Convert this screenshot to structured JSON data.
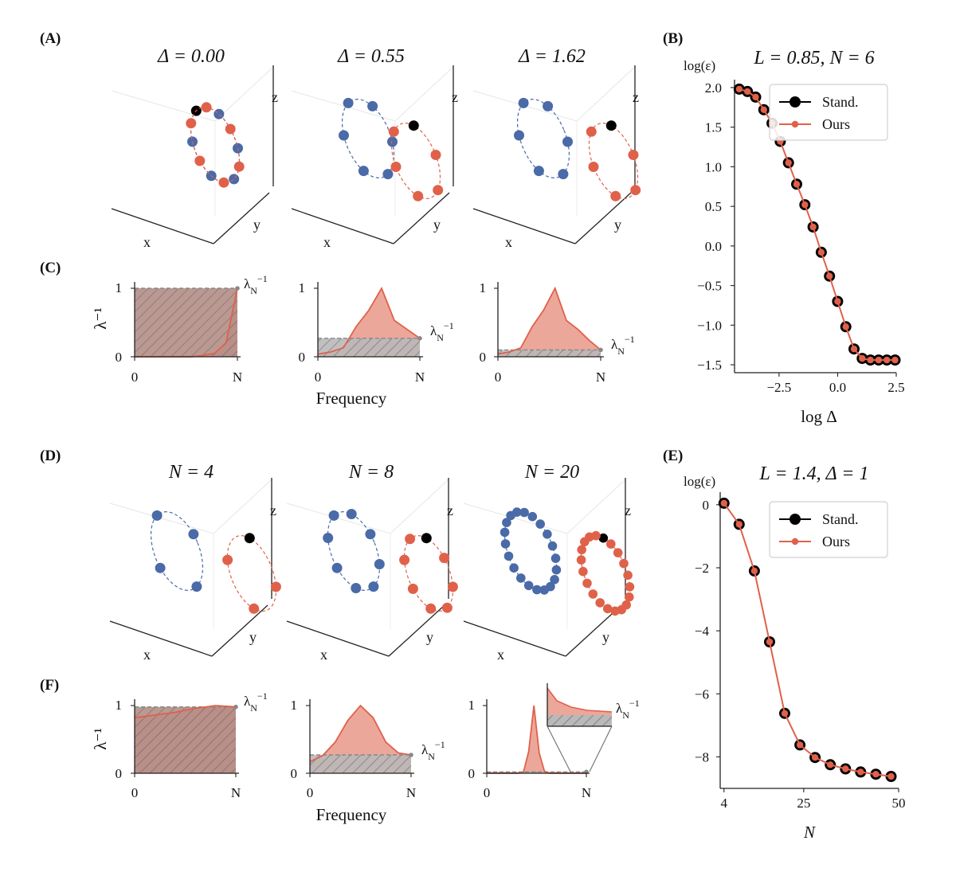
{
  "figure": {
    "panel_labels": [
      "(A)",
      "(B)",
      "(C)",
      "(D)",
      "(E)",
      "(F)"
    ],
    "colors": {
      "blue": "#4a6aa8",
      "red": "#e0614a",
      "red_fill": "#eba79a",
      "gray": "#b9b9b9",
      "black": "#000000"
    }
  },
  "chart_data": [
    {
      "id": "A",
      "type": "scatter3d",
      "axis_labels": [
        "x",
        "y",
        "z"
      ],
      "subplots": [
        {
          "title": "Δ = 0.00",
          "delta": 0.0,
          "n_blue": 6,
          "n_red": 6
        },
        {
          "title": "Δ = 0.55",
          "delta": 0.55,
          "n_blue": 6,
          "n_red": 6
        },
        {
          "title": "Δ = 1.62",
          "delta": 1.62,
          "n_blue": 6,
          "n_red": 6
        }
      ]
    },
    {
      "id": "B",
      "type": "line",
      "title": "L = 0.85, N = 6",
      "ylabel": "log(ε)",
      "xlabel": "log Δ",
      "xlim": [
        -4.4,
        2.5
      ],
      "ylim": [
        -1.6,
        2.1
      ],
      "xticks": [
        -2.5,
        0.0,
        2.5
      ],
      "xtick_labels": [
        "−2.5",
        "0.0",
        "2.5"
      ],
      "yticks": [
        2.0,
        1.5,
        1.0,
        0.5,
        0.0,
        -0.5,
        -1.0,
        -1.5
      ],
      "ytick_labels": [
        "2.0",
        "1.5",
        "1.0",
        "0.5",
        "0.0",
        "−0.5",
        "−1.0",
        "−1.5"
      ],
      "legend": [
        "Stand.",
        "Ours"
      ],
      "x": [
        -4.2,
        -3.85,
        -3.5,
        -3.15,
        -2.8,
        -2.45,
        -2.1,
        -1.75,
        -1.4,
        -1.05,
        -0.7,
        -0.35,
        0.0,
        0.35,
        0.7,
        1.05,
        1.4,
        1.75,
        2.1,
        2.45
      ],
      "series": [
        {
          "name": "Stand.",
          "values": [
            1.98,
            1.95,
            1.88,
            1.72,
            1.55,
            1.32,
            1.05,
            0.78,
            0.52,
            0.24,
            -0.08,
            -0.38,
            -0.7,
            -1.02,
            -1.3,
            -1.42,
            -1.44,
            -1.44,
            -1.44,
            -1.44
          ]
        },
        {
          "name": "Ours",
          "values": [
            1.98,
            1.95,
            1.88,
            1.72,
            1.55,
            1.32,
            1.05,
            0.78,
            0.52,
            0.24,
            -0.08,
            -0.38,
            -0.7,
            -1.02,
            -1.3,
            -1.42,
            -1.44,
            -1.44,
            -1.44,
            -1.44
          ]
        }
      ]
    },
    {
      "id": "C",
      "type": "area",
      "ylabel": "λ⁻¹",
      "xlabel": "Frequency",
      "xtick_labels": [
        "0",
        "N"
      ],
      "yticks": [
        0,
        1
      ],
      "ytick_labels": [
        "0",
        "1"
      ],
      "marker_label": "λ_N⁻¹",
      "subplots": [
        {
          "lambda_N_inv": 1.0,
          "curve": [
            0,
            0,
            0,
            0,
            0,
            0,
            0.02,
            0.05,
            0.2,
            1.0
          ]
        },
        {
          "lambda_N_inv": 0.27,
          "curve": [
            0.04,
            0.07,
            0.13,
            0.44,
            0.68,
            1.0,
            0.53,
            0.4,
            0.27
          ]
        },
        {
          "lambda_N_inv": 0.1,
          "curve": [
            0.04,
            0.07,
            0.13,
            0.44,
            0.68,
            1.0,
            0.53,
            0.4,
            0.24,
            0.1
          ]
        }
      ]
    },
    {
      "id": "D",
      "type": "scatter3d",
      "axis_labels": [
        "x",
        "y",
        "z"
      ],
      "subplots": [
        {
          "title": "N = 4",
          "n": 4
        },
        {
          "title": "N = 8",
          "n": 8
        },
        {
          "title": "N = 20",
          "n": 20
        }
      ]
    },
    {
      "id": "E",
      "type": "line",
      "title": "L = 1.4, Δ = 1",
      "ylabel": "log(ε)",
      "xlabel": "N",
      "xlim": [
        3,
        50
      ],
      "ylim": [
        -9,
        0.4
      ],
      "xticks": [
        4,
        25,
        50
      ],
      "xtick_labels": [
        "4",
        "25",
        "50"
      ],
      "yticks": [
        0,
        -2,
        -4,
        -6,
        -8
      ],
      "ytick_labels": [
        "0",
        "−2",
        "−4",
        "−6",
        "−8"
      ],
      "legend": [
        "Stand.",
        "Ours"
      ],
      "x": [
        4,
        8,
        12,
        16,
        20,
        24,
        28,
        32,
        36,
        40,
        44,
        48
      ],
      "series": [
        {
          "name": "Stand.",
          "values": [
            0.05,
            -0.62,
            -2.1,
            -4.35,
            -6.62,
            -7.62,
            -8.02,
            -8.25,
            -8.38,
            -8.48,
            -8.55,
            -8.62
          ]
        },
        {
          "name": "Ours",
          "values": [
            0.05,
            -0.62,
            -2.1,
            -4.35,
            -6.62,
            -7.62,
            -8.02,
            -8.25,
            -8.38,
            -8.48,
            -8.55,
            -8.62
          ]
        }
      ]
    },
    {
      "id": "F",
      "type": "area",
      "ylabel": "λ⁻¹",
      "xlabel": "Frequency",
      "xtick_labels": [
        "0",
        "N"
      ],
      "yticks": [
        0,
        1
      ],
      "ytick_labels": [
        "0",
        "1"
      ],
      "marker_label": "λ_N⁻¹",
      "subplots": [
        {
          "lambda_N_inv": 0.98,
          "curve": [
            0.82,
            0.86,
            0.9,
            0.96,
            1.0,
            0.98
          ]
        },
        {
          "lambda_N_inv": 0.27,
          "curve": [
            0.17,
            0.26,
            0.46,
            0.78,
            1.0,
            0.82,
            0.46,
            0.3,
            0.27
          ]
        },
        {
          "lambda_N_inv": 0.02,
          "curve": [
            0,
            0,
            0,
            0,
            0,
            0,
            0,
            0.02,
            0.32,
            1.0,
            0.3,
            0.03,
            0,
            0,
            0,
            0,
            0,
            0,
            0,
            0
          ],
          "inset": true
        }
      ]
    }
  ]
}
